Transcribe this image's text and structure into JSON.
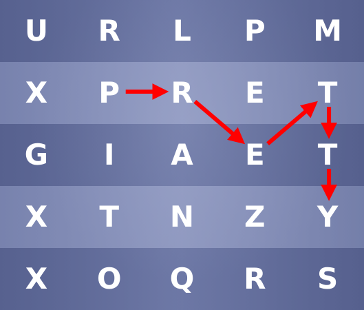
{
  "grid": {
    "rows": [
      [
        "U",
        "R",
        "L",
        "P",
        "M"
      ],
      [
        "X",
        "P",
        "R",
        "E",
        "T"
      ],
      [
        "G",
        "I",
        "A",
        "E",
        "T"
      ],
      [
        "X",
        "T",
        "N",
        "Z",
        "Y"
      ],
      [
        "X",
        "O",
        "Q",
        "R",
        "S"
      ]
    ]
  },
  "path": {
    "color": "#ff0000",
    "cells": [
      {
        "row": 1,
        "col": 1
      },
      {
        "row": 1,
        "col": 2
      },
      {
        "row": 2,
        "col": 3
      },
      {
        "row": 1,
        "col": 4
      },
      {
        "row": 2,
        "col": 4
      },
      {
        "row": 3,
        "col": 4
      }
    ]
  },
  "colors": {
    "letter": "#ffffff",
    "background": "#6873a0"
  }
}
